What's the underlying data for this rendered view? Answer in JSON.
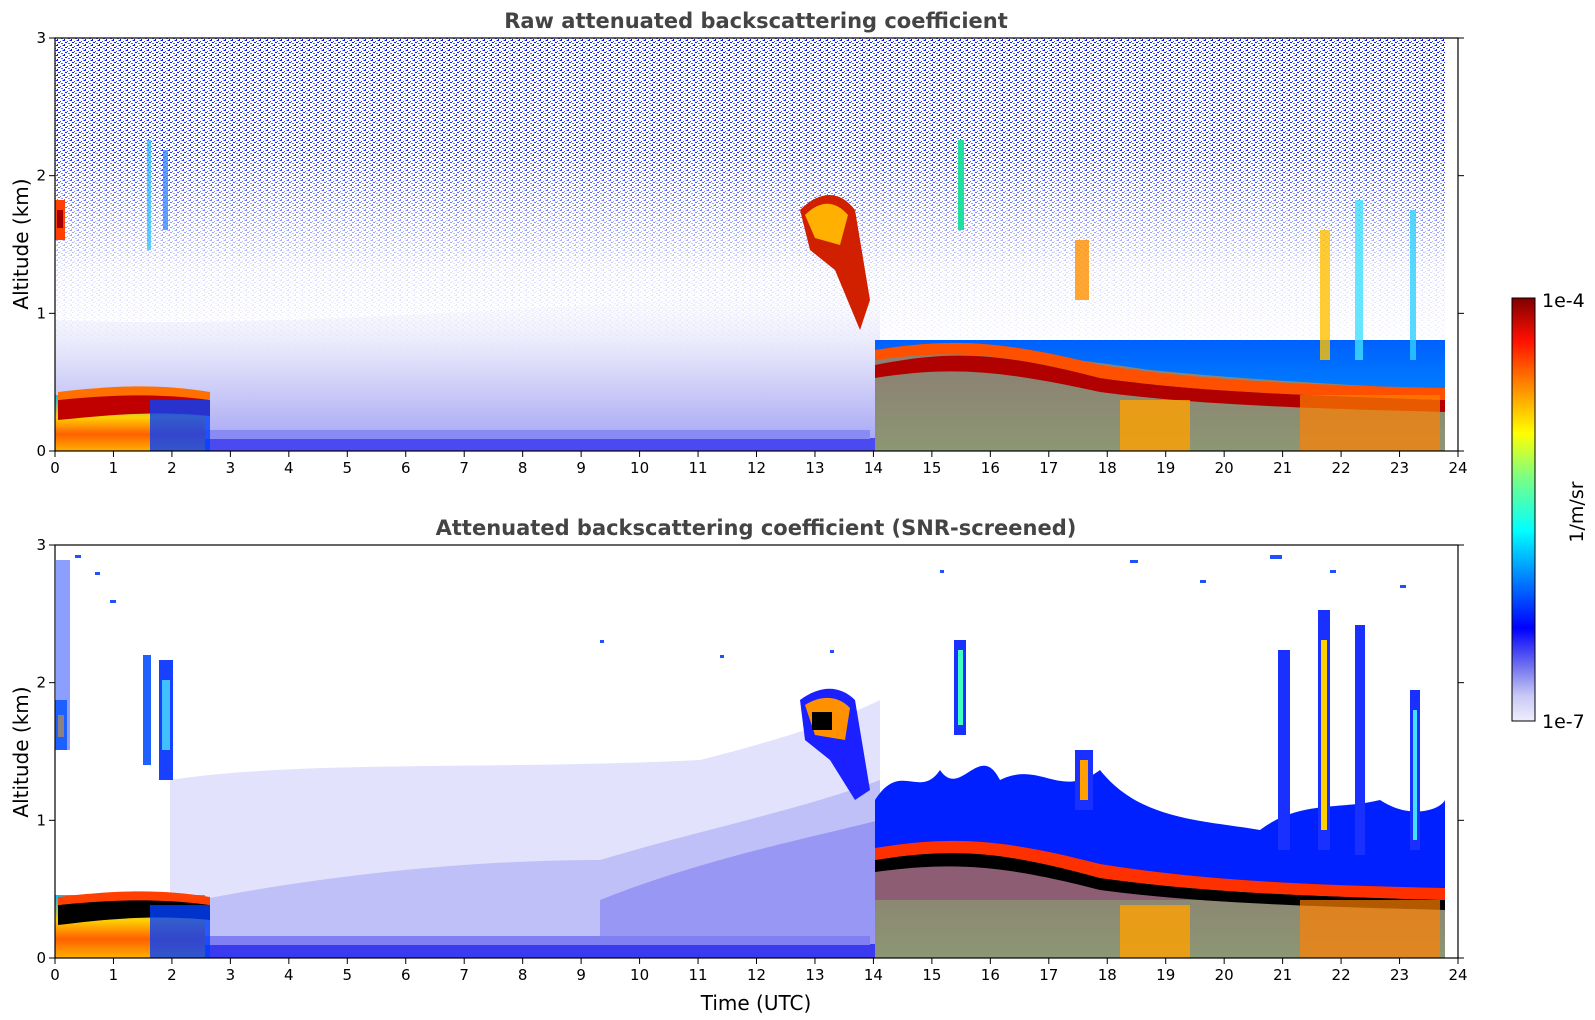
{
  "chart_data": [
    {
      "type": "heatmap",
      "title": "Raw attenuated backscattering coefficient",
      "xlabel": "",
      "ylabel": "Altitude (km)",
      "xlim": [
        0,
        24
      ],
      "ylim": [
        0,
        3
      ],
      "x_ticks": [
        "0",
        "1",
        "2",
        "3",
        "4",
        "5",
        "6",
        "7",
        "8",
        "9",
        "10",
        "11",
        "12",
        "13",
        "14",
        "15",
        "16",
        "17",
        "18",
        "19",
        "20",
        "21",
        "22",
        "23",
        "24"
      ],
      "y_ticks": [
        "0",
        "1",
        "2",
        "3"
      ],
      "features": [
        {
          "time_range": [
            0,
            2.6
          ],
          "altitude_km": [
            0.2,
            0.45
          ],
          "level": "high"
        },
        {
          "time_range": [
            0,
            0.2
          ],
          "altitude_km": [
            1.55,
            1.85
          ],
          "level": "high"
        },
        {
          "time_range": [
            12.9,
            13.9
          ],
          "altitude_km": [
            1.3,
            1.85
          ],
          "level": "high"
        },
        {
          "time_range": [
            14.0,
            23.8
          ],
          "altitude_km": [
            0.25,
            0.75
          ],
          "level": "high"
        },
        {
          "time_range": [
            14.0,
            23.8
          ],
          "altitude_km": [
            0,
            0.3
          ],
          "level": "medium"
        },
        {
          "time_range": [
            0,
            24
          ],
          "altitude_km": [
            2.0,
            3.0
          ],
          "level": "noise"
        }
      ]
    },
    {
      "type": "heatmap",
      "title": "Attenuated backscattering coefficient (SNR-screened)",
      "xlabel": "Time (UTC)",
      "ylabel": "Altitude (km)",
      "xlim": [
        0,
        24
      ],
      "ylim": [
        0,
        3
      ],
      "x_ticks": [
        "0",
        "1",
        "2",
        "3",
        "4",
        "5",
        "6",
        "7",
        "8",
        "9",
        "10",
        "11",
        "12",
        "13",
        "14",
        "15",
        "16",
        "17",
        "18",
        "19",
        "20",
        "21",
        "22",
        "23",
        "24"
      ],
      "y_ticks": [
        "0",
        "1",
        "2",
        "3"
      ],
      "features": [
        {
          "time_range": [
            0,
            2.6
          ],
          "altitude_km": [
            0.2,
            0.45
          ],
          "level": "high"
        },
        {
          "time_range": [
            1.55,
            1.95
          ],
          "altitude_km": [
            1.4,
            2.3
          ],
          "level": "medium"
        },
        {
          "time_range": [
            12.9,
            13.9
          ],
          "altitude_km": [
            1.3,
            1.9
          ],
          "level": "high"
        },
        {
          "time_range": [
            14.0,
            23.8
          ],
          "altitude_km": [
            0.25,
            0.75
          ],
          "level": "high"
        },
        {
          "time_range": [
            15.5,
            15.7
          ],
          "altitude_km": [
            1.6,
            2.3
          ],
          "level": "medium"
        }
      ]
    }
  ],
  "colorbar": {
    "min_label": "1e-7",
    "max_label": "1e-4",
    "label": "1/m/sr",
    "scale": "log",
    "range": [
      1e-07,
      0.0001
    ],
    "colormap": "jet-with-white-low"
  }
}
